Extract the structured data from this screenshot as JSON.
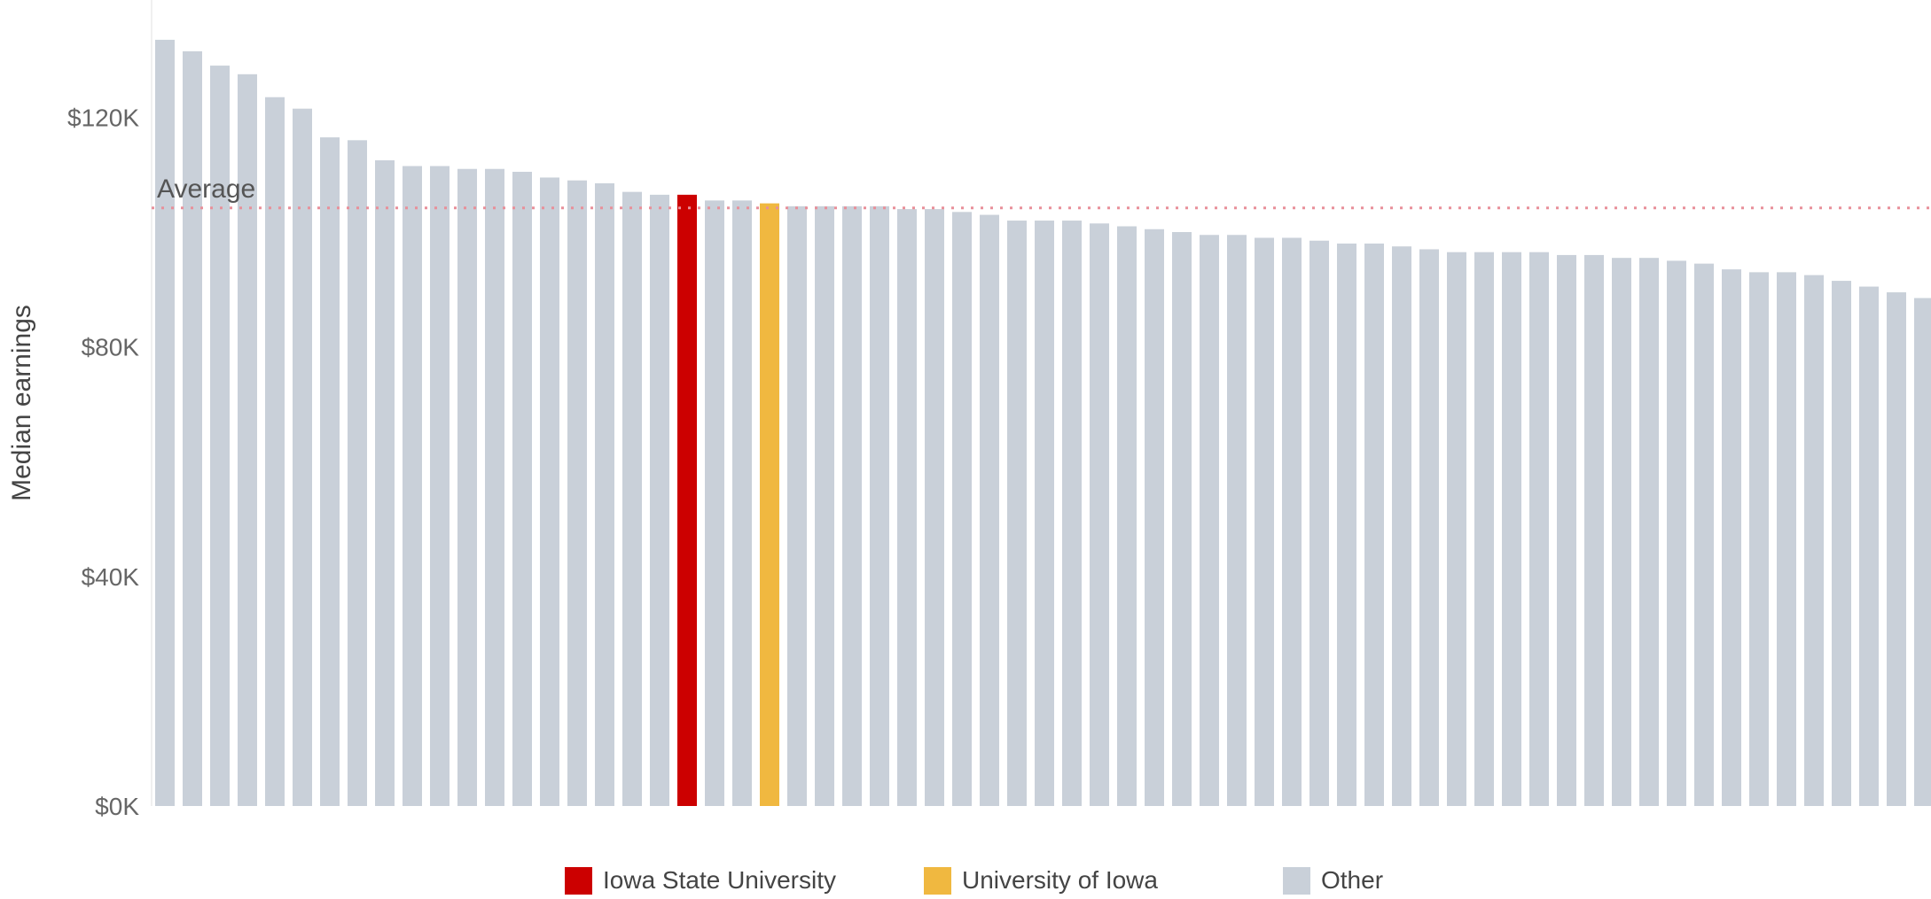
{
  "chart_data": {
    "type": "bar",
    "ylabel": "Median earnings",
    "ylim": [
      0,
      137000
    ],
    "yticks": [
      {
        "value": 0,
        "label": "$0K"
      },
      {
        "value": 40000,
        "label": "$40K"
      },
      {
        "value": 80000,
        "label": "$80K"
      },
      {
        "value": 120000,
        "label": "$120K"
      }
    ],
    "average": {
      "label": "Average",
      "value": 104200
    },
    "values": [
      133500,
      131500,
      129000,
      127500,
      123500,
      121500,
      116500,
      116000,
      112500,
      111500,
      111500,
      111000,
      111000,
      110500,
      109500,
      109000,
      108500,
      107000,
      106500,
      106500,
      105500,
      105500,
      105000,
      104500,
      104500,
      104500,
      104500,
      104000,
      104000,
      103500,
      103000,
      102000,
      102000,
      102000,
      101500,
      101000,
      100500,
      100000,
      99500,
      99500,
      99000,
      99000,
      98500,
      98000,
      98000,
      97500,
      97000,
      96500,
      96500,
      96500,
      96500,
      96000,
      96000,
      95500,
      95500,
      95000,
      94500,
      93500,
      93000,
      93000,
      92500,
      91500,
      90500,
      89500,
      88500
    ],
    "categories_of_bars": [
      "Other",
      "Other",
      "Other",
      "Other",
      "Other",
      "Other",
      "Other",
      "Other",
      "Other",
      "Other",
      "Other",
      "Other",
      "Other",
      "Other",
      "Other",
      "Other",
      "Other",
      "Other",
      "Other",
      "Iowa State University",
      "Other",
      "Other",
      "University of Iowa",
      "Other",
      "Other",
      "Other",
      "Other",
      "Other",
      "Other",
      "Other",
      "Other",
      "Other",
      "Other",
      "Other",
      "Other",
      "Other",
      "Other",
      "Other",
      "Other",
      "Other",
      "Other",
      "Other",
      "Other",
      "Other",
      "Other",
      "Other",
      "Other",
      "Other",
      "Other",
      "Other",
      "Other",
      "Other",
      "Other",
      "Other",
      "Other",
      "Other",
      "Other",
      "Other",
      "Other",
      "Other",
      "Other",
      "Other",
      "Other",
      "Other",
      "Other"
    ],
    "series": [
      {
        "name": "Iowa State University",
        "color": "#cc0000"
      },
      {
        "name": "University of Iowa",
        "color": "#f0b840"
      },
      {
        "name": "Other",
        "color": "#c9d0d9"
      }
    ],
    "average_line_color": "#e8909a",
    "legend_position": "bottom",
    "grid": false
  }
}
